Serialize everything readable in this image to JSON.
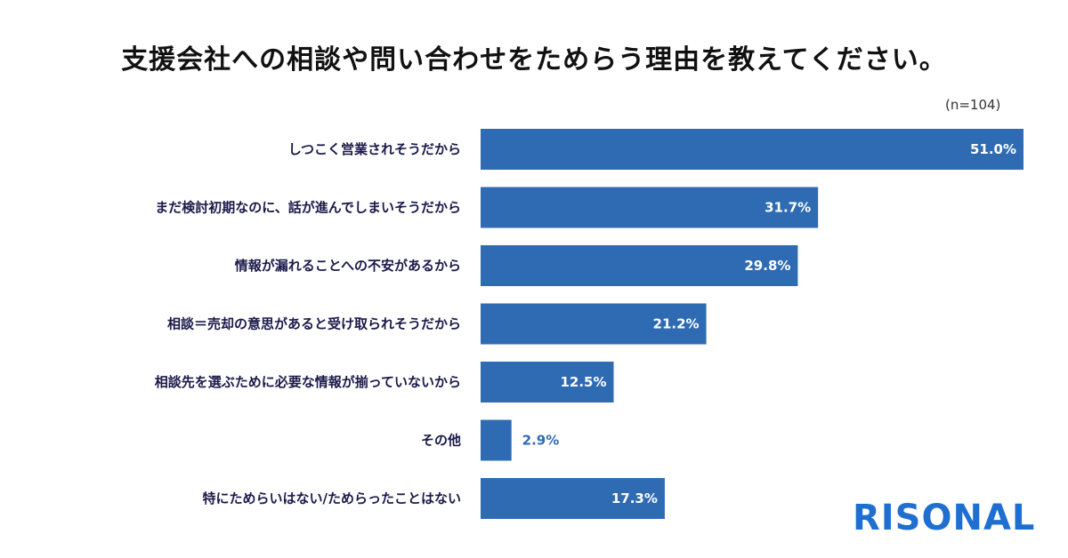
{
  "title": "支援会社への相談や問い合わせをためらう理由を教えてください。",
  "sample_size": "(n=104)",
  "logo_text": "RISONAL",
  "colors": {
    "bar": "#2e6bb3",
    "label_inside": "#ffffff",
    "label_outside": "#2e6bb3",
    "logo": "#1f6fd1",
    "category_text": "#1a1a4a"
  },
  "chart_data": {
    "type": "bar",
    "orientation": "horizontal",
    "title": "支援会社への相談や問い合わせをためらう理由を教えてください。",
    "categories": [
      "しつこく営業されそうだから",
      "まだ検討初期なのに、話が進んでしまいそうだから",
      "情報が漏れることへの不安があるから",
      "相談＝売却の意思があると受け取られそうだから",
      "相談先を選ぶために必要な情報が揃っていないから",
      "その他",
      "特にためらいはない/ためらったことはない"
    ],
    "values": [
      51.0,
      31.7,
      29.8,
      21.2,
      12.5,
      2.9,
      17.3
    ],
    "value_labels": [
      "51.0%",
      "31.7%",
      "29.8%",
      "21.2%",
      "12.5%",
      "2.9%",
      "17.3%"
    ],
    "unit": "%",
    "xlim": [
      0,
      51.0
    ],
    "grid": false,
    "legend": "none"
  }
}
